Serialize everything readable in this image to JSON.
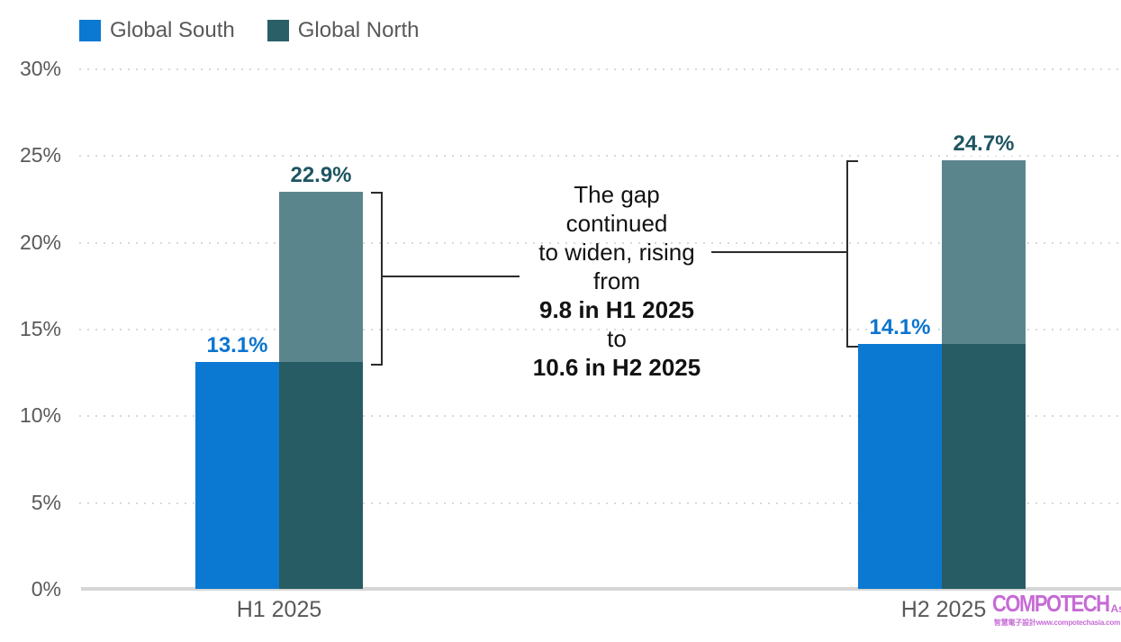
{
  "legend": {
    "items": [
      {
        "label": "Global South",
        "color": "#0b79d2"
      },
      {
        "label": "Global North",
        "color": "#2a5f67"
      }
    ]
  },
  "chart_data": {
    "type": "bar",
    "categories": [
      "H1 2025",
      "H2 2025"
    ],
    "series": [
      {
        "name": "Global South",
        "color": "#0b79d2",
        "values": [
          13.1,
          14.1
        ],
        "labels": [
          "13.1%",
          "14.1%"
        ]
      },
      {
        "name": "Global North",
        "color": "#2a5f67",
        "overlap_color": "#275c64",
        "gap_color": "#5b858c",
        "values": [
          22.9,
          24.7
        ],
        "labels": [
          "22.9%",
          "24.7%"
        ]
      }
    ],
    "gaps": [
      9.8,
      10.6
    ],
    "ylim": [
      0,
      30
    ],
    "yticks": [
      {
        "value": 30,
        "label": "30%"
      },
      {
        "value": 25,
        "label": "25%"
      },
      {
        "value": 20,
        "label": "20%"
      },
      {
        "value": 15,
        "label": "15%"
      },
      {
        "value": 10,
        "label": "10%"
      },
      {
        "value": 5,
        "label": "5%"
      },
      {
        "value": 0,
        "label": "0%"
      }
    ],
    "grid": "horizontal-dotted",
    "legend_position": "top-left",
    "title": ""
  },
  "annotation": {
    "lines": [
      {
        "text": "The gap",
        "bold": false
      },
      {
        "text": "continued",
        "bold": false
      },
      {
        "text": "to widen, rising",
        "bold": false
      },
      {
        "text": "from",
        "bold": false
      },
      {
        "text": "9.8 in H1 2025",
        "bold": true
      },
      {
        "text": "to",
        "bold": false
      },
      {
        "text": "10.6 in H2 2025",
        "bold": true
      }
    ]
  },
  "logo": {
    "name": "COMPOTECH",
    "suffix": "Asia",
    "tagline": "智慧電子設計www.compotechasia.com",
    "color": "#c66bd5"
  }
}
